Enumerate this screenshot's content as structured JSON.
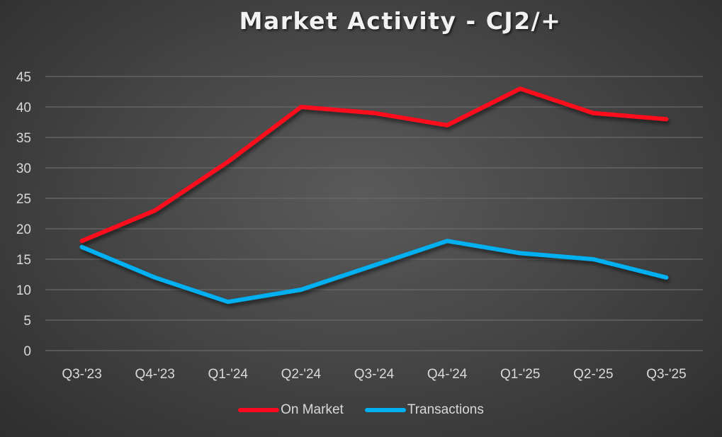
{
  "chart_data": {
    "type": "line",
    "title": "Market Activity - CJ2/+",
    "xlabel": "",
    "ylabel": "",
    "categories": [
      "Q3-'23",
      "Q4-'23",
      "Q1-'24",
      "Q2-'24",
      "Q3-'24",
      "Q4-'24",
      "Q1-'25",
      "Q2-'25",
      "Q3-'25"
    ],
    "series": [
      {
        "name": "On Market",
        "color": "#ff0a1e",
        "values": [
          18,
          23,
          31,
          40,
          39,
          37,
          43,
          39,
          38
        ]
      },
      {
        "name": "Transactions",
        "color": "#00b0f0",
        "values": [
          17,
          12,
          8,
          10,
          14,
          18,
          16,
          15,
          12
        ]
      }
    ],
    "ylim": [
      0,
      45
    ],
    "yticks": [
      0,
      5,
      10,
      15,
      20,
      25,
      30,
      35,
      40,
      45
    ],
    "grid": true,
    "legend_position": "bottom"
  }
}
